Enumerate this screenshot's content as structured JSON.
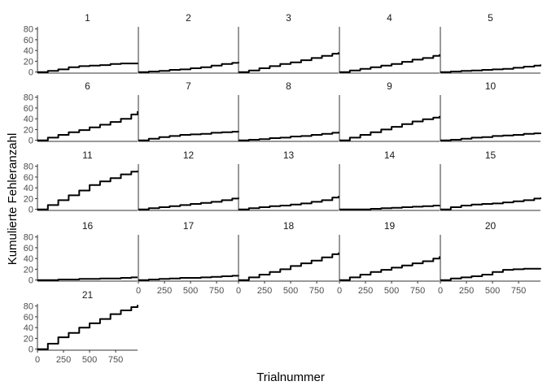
{
  "chart_data": {
    "type": "line",
    "layout": "facet grid, 5 columns",
    "xlabel": "Trialnummer",
    "ylabel": "Kumulierte Fehleranzahl",
    "xlim": [
      0,
      960
    ],
    "ylim": [
      -2,
      84
    ],
    "x_ticks": [
      0,
      250,
      500,
      750
    ],
    "y_ticks": [
      0,
      20,
      40,
      60,
      80
    ],
    "panels": [
      {
        "label": "1",
        "x": [
          0,
          100,
          200,
          300,
          400,
          500,
          600,
          700,
          800,
          900,
          960
        ],
        "y": [
          0,
          2,
          5,
          9,
          11,
          12,
          13,
          15,
          16,
          16,
          17
        ]
      },
      {
        "label": "2",
        "x": [
          0,
          100,
          200,
          300,
          400,
          500,
          600,
          700,
          800,
          900,
          960
        ],
        "y": [
          0,
          1,
          2,
          4,
          5,
          7,
          9,
          12,
          15,
          17,
          19
        ]
      },
      {
        "label": "3",
        "x": [
          0,
          100,
          200,
          300,
          400,
          500,
          600,
          700,
          800,
          900,
          960
        ],
        "y": [
          0,
          3,
          7,
          11,
          15,
          18,
          22,
          26,
          30,
          34,
          37
        ]
      },
      {
        "label": "4",
        "x": [
          0,
          100,
          200,
          300,
          400,
          500,
          600,
          700,
          800,
          900,
          960
        ],
        "y": [
          0,
          3,
          6,
          9,
          12,
          15,
          19,
          23,
          26,
          30,
          33
        ]
      },
      {
        "label": "5",
        "x": [
          0,
          100,
          200,
          300,
          400,
          500,
          600,
          700,
          800,
          900,
          960
        ],
        "y": [
          0,
          1,
          2,
          3,
          4,
          5,
          6,
          8,
          10,
          12,
          14
        ]
      },
      {
        "label": "6",
        "x": [
          0,
          100,
          200,
          300,
          400,
          500,
          600,
          700,
          800,
          900,
          960
        ],
        "y": [
          0,
          5,
          10,
          15,
          19,
          24,
          29,
          34,
          40,
          48,
          54
        ]
      },
      {
        "label": "7",
        "x": [
          0,
          100,
          200,
          300,
          400,
          500,
          600,
          700,
          800,
          900,
          960
        ],
        "y": [
          0,
          3,
          6,
          8,
          10,
          11,
          12,
          14,
          15,
          16,
          17
        ]
      },
      {
        "label": "8",
        "x": [
          0,
          100,
          200,
          300,
          400,
          500,
          600,
          700,
          800,
          900,
          960
        ],
        "y": [
          0,
          1,
          2,
          4,
          5,
          7,
          8,
          10,
          12,
          14,
          16
        ]
      },
      {
        "label": "9",
        "x": [
          0,
          100,
          200,
          300,
          400,
          500,
          600,
          700,
          800,
          900,
          960
        ],
        "y": [
          0,
          5,
          10,
          15,
          20,
          25,
          30,
          35,
          39,
          42,
          45
        ]
      },
      {
        "label": "10",
        "x": [
          0,
          100,
          200,
          300,
          400,
          500,
          600,
          700,
          800,
          900,
          960
        ],
        "y": [
          0,
          1,
          3,
          5,
          6,
          8,
          9,
          10,
          12,
          13,
          14
        ]
      },
      {
        "label": "11",
        "x": [
          0,
          100,
          200,
          300,
          400,
          500,
          600,
          700,
          800,
          900,
          960
        ],
        "y": [
          0,
          8,
          17,
          26,
          35,
          45,
          52,
          58,
          65,
          70,
          72
        ]
      },
      {
        "label": "12",
        "x": [
          0,
          100,
          200,
          300,
          400,
          500,
          600,
          700,
          800,
          900,
          960
        ],
        "y": [
          0,
          2,
          4,
          6,
          8,
          10,
          12,
          14,
          17,
          20,
          22
        ]
      },
      {
        "label": "13",
        "x": [
          0,
          100,
          200,
          300,
          400,
          500,
          600,
          700,
          800,
          900,
          960
        ],
        "y": [
          0,
          2,
          4,
          6,
          7,
          9,
          11,
          14,
          17,
          22,
          25
        ]
      },
      {
        "label": "14",
        "x": [
          0,
          100,
          200,
          300,
          400,
          500,
          600,
          700,
          800,
          900,
          960
        ],
        "y": [
          0,
          0,
          0,
          1,
          2,
          3,
          4,
          5,
          6,
          7,
          8
        ]
      },
      {
        "label": "15",
        "x": [
          0,
          100,
          200,
          300,
          400,
          500,
          600,
          700,
          800,
          900,
          960
        ],
        "y": [
          0,
          4,
          7,
          9,
          10,
          11,
          13,
          15,
          17,
          20,
          22
        ]
      },
      {
        "label": "16",
        "x": [
          0,
          100,
          200,
          300,
          400,
          500,
          600,
          700,
          800,
          900,
          960
        ],
        "y": [
          0,
          0,
          1,
          1,
          2,
          2,
          3,
          3,
          4,
          5,
          5
        ]
      },
      {
        "label": "17",
        "x": [
          0,
          100,
          200,
          300,
          400,
          500,
          600,
          700,
          800,
          900,
          960
        ],
        "y": [
          0,
          1,
          2,
          3,
          4,
          4,
          5,
          6,
          7,
          8,
          9
        ]
      },
      {
        "label": "18",
        "x": [
          0,
          100,
          200,
          300,
          400,
          500,
          600,
          700,
          800,
          900,
          960
        ],
        "y": [
          0,
          5,
          10,
          15,
          20,
          26,
          31,
          36,
          42,
          48,
          51
        ]
      },
      {
        "label": "19",
        "x": [
          0,
          100,
          200,
          300,
          400,
          500,
          600,
          700,
          800,
          900,
          960
        ],
        "y": [
          0,
          5,
          10,
          15,
          19,
          23,
          27,
          31,
          35,
          40,
          44
        ]
      },
      {
        "label": "20",
        "x": [
          0,
          100,
          200,
          300,
          400,
          500,
          600,
          700,
          800,
          900,
          960
        ],
        "y": [
          0,
          3,
          5,
          7,
          10,
          15,
          19,
          20,
          21,
          21,
          22
        ]
      },
      {
        "label": "21",
        "x": [
          0,
          100,
          200,
          300,
          400,
          500,
          600,
          700,
          800,
          900,
          960
        ],
        "y": [
          0,
          10,
          22,
          30,
          40,
          48,
          56,
          65,
          72,
          78,
          82
        ]
      }
    ],
    "grid": false,
    "line_color": "#000000",
    "axis_color": "#333333",
    "tick_label_color": "#4d4d4d"
  }
}
